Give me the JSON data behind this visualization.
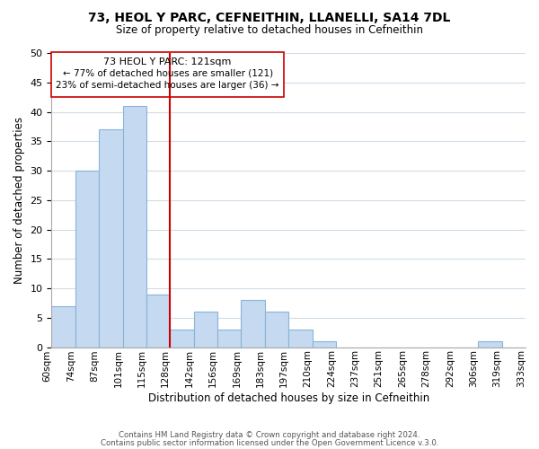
{
  "title": "73, HEOL Y PARC, CEFNEITHIN, LLANELLI, SA14 7DL",
  "subtitle": "Size of property relative to detached houses in Cefneithin",
  "xlabel": "Distribution of detached houses by size in Cefneithin",
  "ylabel": "Number of detached properties",
  "bar_color": "#c5d9f1",
  "bar_edge_color": "#8ab4d9",
  "tick_labels": [
    "60sqm",
    "74sqm",
    "87sqm",
    "101sqm",
    "115sqm",
    "128sqm",
    "142sqm",
    "156sqm",
    "169sqm",
    "183sqm",
    "197sqm",
    "210sqm",
    "224sqm",
    "237sqm",
    "251sqm",
    "265sqm",
    "278sqm",
    "292sqm",
    "306sqm",
    "319sqm",
    "333sqm"
  ],
  "values": [
    7,
    30,
    37,
    41,
    9,
    3,
    6,
    3,
    8,
    6,
    3,
    1,
    0,
    0,
    0,
    0,
    0,
    0,
    1,
    0
  ],
  "ylim": [
    0,
    50
  ],
  "yticks": [
    0,
    5,
    10,
    15,
    20,
    25,
    30,
    35,
    40,
    45,
    50
  ],
  "marker_bin_edge": 5,
  "marker_color": "#cc0000",
  "annotation_title": "73 HEOL Y PARC: 121sqm",
  "annotation_line1": "← 77% of detached houses are smaller (121)",
  "annotation_line2": "23% of semi-detached houses are larger (36) →",
  "footer1": "Contains HM Land Registry data © Crown copyright and database right 2024.",
  "footer2": "Contains public sector information licensed under the Open Government Licence v.3.0.",
  "background_color": "#ffffff",
  "grid_color": "#d0dce8"
}
